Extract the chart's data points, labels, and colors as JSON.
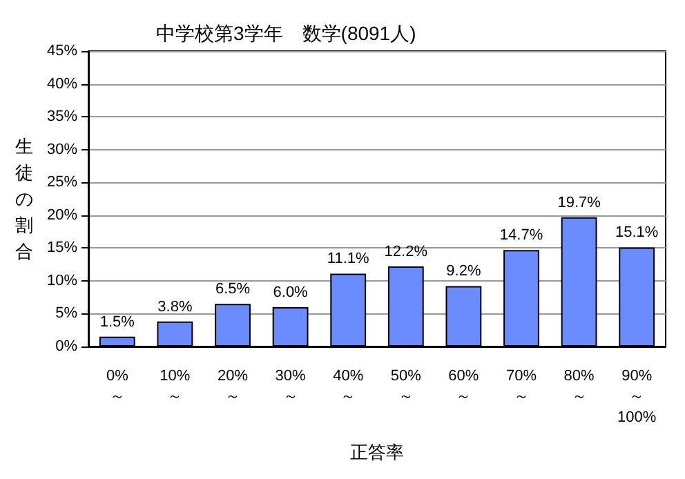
{
  "chart_data": {
    "type": "bar",
    "title": "中学校第3学年　数学(8091人)",
    "xlabel": "正答率",
    "ylabel": "生徒の割合",
    "categories": [
      "0%\n～",
      "10%\n～",
      "20%\n～",
      "30%\n～",
      "40%\n～",
      "50%\n～",
      "60%\n～",
      "70%\n～",
      "80%\n～",
      "90%\n～\n100%"
    ],
    "values": [
      1.5,
      3.8,
      6.5,
      6.0,
      11.1,
      12.2,
      9.2,
      14.7,
      19.7,
      15.1
    ],
    "value_labels": [
      "1.5%",
      "3.8%",
      "6.5%",
      "6.0%",
      "11.1%",
      "12.2%",
      "9.2%",
      "14.7%",
      "19.7%",
      "15.1%"
    ],
    "color": "#6b8cff",
    "ylim": [
      0,
      45
    ],
    "yticks": [
      {
        "value": 0,
        "label": "0%"
      },
      {
        "value": 5,
        "label": "5%"
      },
      {
        "value": 10,
        "label": "10%"
      },
      {
        "value": 15,
        "label": "15%"
      },
      {
        "value": 20,
        "label": "20%"
      },
      {
        "value": 25,
        "label": "25%"
      },
      {
        "value": 30,
        "label": "30%"
      },
      {
        "value": 35,
        "label": "35%"
      },
      {
        "value": 40,
        "label": "40%"
      },
      {
        "value": 45,
        "label": "45%"
      }
    ],
    "grid": true
  }
}
